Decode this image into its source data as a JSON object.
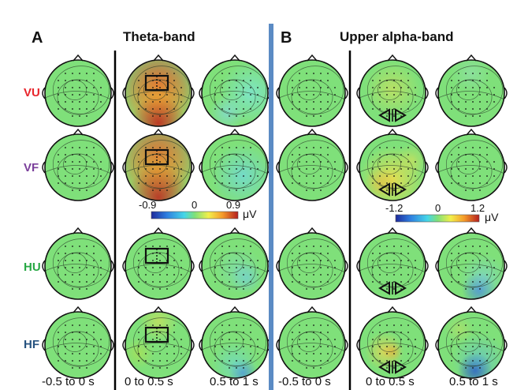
{
  "figure": {
    "panel_a": {
      "letter": "A",
      "title": "Theta-band"
    },
    "panel_b": {
      "letter": "B",
      "title": "Upper  alpha-band"
    },
    "rows": [
      {
        "label": "VU",
        "color": "#e8242b"
      },
      {
        "label": "VF",
        "color": "#7b3f9b"
      },
      {
        "label": "HU",
        "color": "#27a844"
      },
      {
        "label": "HF",
        "color": "#26527f"
      }
    ],
    "time_windows": [
      "-0.5 to 0 s",
      "0 to 0.5 s",
      "0.5 to 1 s"
    ],
    "colorbar_a": {
      "min": "-0.9",
      "mid": "0",
      "max": "0.9",
      "unit": "μV"
    },
    "colorbar_b": {
      "min": "-1.2",
      "mid": "0",
      "max": "1.2",
      "unit": "μV"
    },
    "colors": {
      "separator": "#5b8bc4",
      "line": "#000000"
    }
  }
}
